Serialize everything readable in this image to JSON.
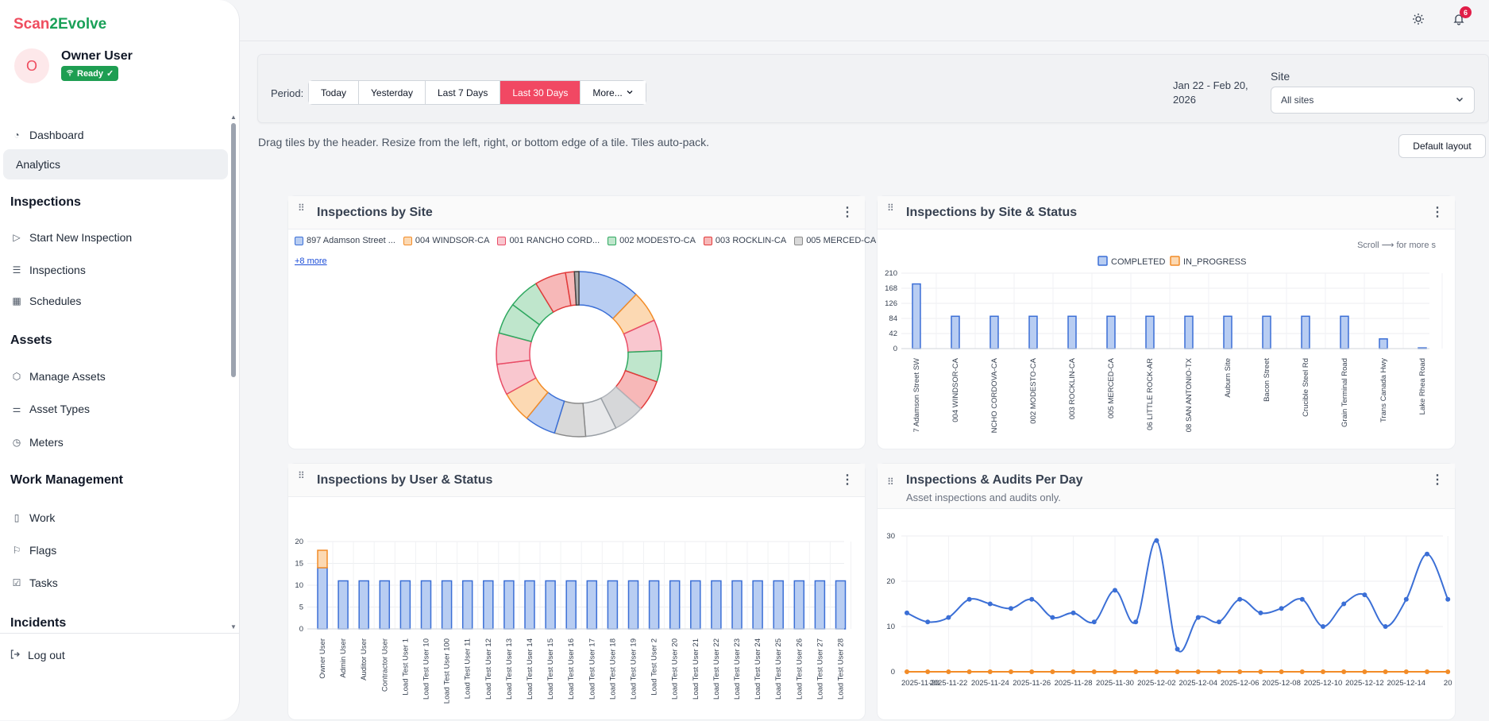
{
  "brand": {
    "part1": "Scan",
    "part2": "2Evolve"
  },
  "user": {
    "initial": "O",
    "name": "Owner User",
    "status": "Ready"
  },
  "sidebar": {
    "items": [
      {
        "label": "Dashboard",
        "icon": "dashboard-icon"
      },
      {
        "label": "Analytics",
        "active": true
      },
      {
        "section": "Inspections"
      },
      {
        "label": "Start New Inspection",
        "icon": "play-icon"
      },
      {
        "label": "Inspections",
        "icon": "list-icon"
      },
      {
        "label": "Schedules",
        "icon": "calendar-icon"
      },
      {
        "section": "Assets"
      },
      {
        "label": "Manage Assets",
        "icon": "box-icon"
      },
      {
        "label": "Asset Types",
        "icon": "sliders-icon"
      },
      {
        "label": "Meters",
        "icon": "gauge-icon"
      },
      {
        "section": "Work Management"
      },
      {
        "label": "Work",
        "icon": "clipboard-icon"
      },
      {
        "label": "Flags",
        "icon": "flag-icon"
      },
      {
        "label": "Tasks",
        "icon": "checkbox-icon"
      },
      {
        "section": "Incidents"
      }
    ],
    "logout": "Log out"
  },
  "topbar": {
    "notifications": "6"
  },
  "filters": {
    "period_label": "Period:",
    "periods": [
      "Today",
      "Yesterday",
      "Last 7 Days",
      "Last 30 Days",
      "More..."
    ],
    "active_period": "Last 30 Days",
    "date_range": "Jan 22 - Feb 20, 2026",
    "site_label": "Site",
    "site_value": "All sites"
  },
  "hint": "Drag tiles by the header. Resize from the left, right, or bottom edge of a tile. Tiles auto-pack.",
  "default_layout": "Default layout",
  "tiles": {
    "by_site": {
      "title": "Inspections by Site",
      "more": "+8 more"
    },
    "by_site_status": {
      "title": "Inspections by Site & Status",
      "scroll_hint": "Scroll ⟶ for more s"
    },
    "by_user_status": {
      "title": "Inspections by User & Status"
    },
    "per_day": {
      "title": "Inspections & Audits Per Day",
      "subtitle": "Asset inspections and audits only."
    }
  },
  "colors": {
    "accent": "#f14863",
    "completed": "#3b6fd6",
    "in_progress": "#f28c28",
    "brand_red": "#ef4d5f",
    "brand_green": "#1aa158"
  },
  "chart_data": [
    {
      "type": "pie",
      "title": "Inspections by Site",
      "legend": [
        "897 Adamson Street ...",
        "004 WINDSOR-CA",
        "001 RANCHO CORD...",
        "002 MODESTO-CA",
        "003 ROCKLIN-CA",
        "005 MERCED-CA"
      ],
      "slice_colors": [
        "#3b6fd6",
        "#f28c28",
        "#e94d67",
        "#2fa860",
        "#e23b3b",
        "#8a8a8a",
        "#9aa0a6",
        "#b0b4ba",
        "#e23b3b",
        "#2fa860",
        "#e94d67",
        "#f28c28",
        "#3b6fd6",
        "#e94d67",
        "#2fa860",
        "#e23b3b",
        "#444444"
      ],
      "values": [
        14,
        7,
        7,
        7,
        7,
        7,
        7,
        7,
        7,
        7,
        7,
        7,
        7,
        7,
        7,
        2,
        1
      ]
    },
    {
      "type": "bar",
      "title": "Inspections by Site & Status",
      "categories": [
        "7 Adamson Street SW",
        "004 WINDSOR-CA",
        "NCHO CORDOVA-CA",
        "002 MODESTO-CA",
        "003 ROCKLIN-CA",
        "005 MERCED-CA",
        "06 LITTLE ROCK-AR",
        "08 SAN ANTONIO-TX",
        "Auburn Site",
        "Bacon Street",
        "Crucible Steel Rd",
        "Grain Terminal Road",
        "Trans Canada Hwy",
        "Lake Rhea Road"
      ],
      "series": [
        {
          "name": "COMPLETED",
          "values": [
            180,
            90,
            90,
            90,
            90,
            90,
            90,
            90,
            90,
            90,
            90,
            90,
            27,
            2
          ]
        },
        {
          "name": "IN_PROGRESS",
          "values": [
            0,
            0,
            0,
            0,
            0,
            0,
            0,
            0,
            0,
            0,
            0,
            0,
            0,
            0
          ]
        }
      ],
      "ylim": [
        0,
        210
      ],
      "yticks": [
        0,
        42,
        84,
        126,
        168,
        210
      ]
    },
    {
      "type": "bar",
      "title": "Inspections by User & Status",
      "categories": [
        "Owner User",
        "Admin User",
        "Auditor User",
        "Contractor User",
        "Load Test User 1",
        "Load Test User 10",
        "Load Test User 100",
        "Load Test User 11",
        "Load Test User 12",
        "Load Test User 13",
        "Load Test User 14",
        "Load Test User 15",
        "Load Test User 16",
        "Load Test User 17",
        "Load Test User 18",
        "Load Test User 19",
        "Load Test User 2",
        "Load Test User 20",
        "Load Test User 21",
        "Load Test User 22",
        "Load Test User 23",
        "Load Test User 24",
        "Load Test User 25",
        "Load Test User 26",
        "Load Test User 27",
        "Load Test User 28"
      ],
      "series": [
        {
          "name": "COMPLETED",
          "values": [
            14,
            11,
            11,
            11,
            11,
            11,
            11,
            11,
            11,
            11,
            11,
            11,
            11,
            11,
            11,
            11,
            11,
            11,
            11,
            11,
            11,
            11,
            11,
            11,
            11,
            11
          ]
        },
        {
          "name": "IN_PROGRESS",
          "values": [
            4,
            0,
            0,
            0,
            0,
            0,
            0,
            0,
            0,
            0,
            0,
            0,
            0,
            0,
            0,
            0,
            0,
            0,
            0,
            0,
            0,
            0,
            0,
            0,
            0,
            0
          ]
        }
      ],
      "ylim": [
        0,
        20
      ],
      "yticks": [
        0,
        5,
        10,
        15,
        20
      ]
    },
    {
      "type": "line",
      "title": "Inspections & Audits Per Day",
      "x": [
        "2025-11-20",
        "2025-11-21",
        "2025-11-22",
        "2025-11-23",
        "2025-11-24",
        "2025-11-25",
        "2025-11-26",
        "2025-11-27",
        "2025-11-28",
        "2025-11-29",
        "2025-11-30",
        "2025-12-01",
        "2025-12-02",
        "2025-12-03",
        "2025-12-04",
        "2025-12-05",
        "2025-12-06",
        "2025-12-07",
        "2025-12-08",
        "2025-12-09",
        "2025-12-10",
        "2025-12-11",
        "2025-12-12",
        "2025-12-13",
        "2025-12-14",
        "2025-12-15",
        "2025-12-16"
      ],
      "xticks": [
        "2025-11-20",
        "2025-11-22",
        "2025-11-24",
        "2025-11-26",
        "2025-11-28",
        "2025-11-30",
        "2025-12-02",
        "2025-12-04",
        "2025-12-06",
        "2025-12-08",
        "2025-12-10",
        "2025-12-12",
        "2025-12-14",
        "20"
      ],
      "series": [
        {
          "values": [
            13,
            11,
            12,
            16,
            15,
            14,
            16,
            12,
            13,
            11,
            18,
            11,
            29,
            5,
            12,
            11,
            16,
            13,
            14,
            16,
            10,
            15,
            17,
            10,
            16,
            26,
            16
          ]
        },
        {
          "values": [
            0,
            0,
            0,
            0,
            0,
            0,
            0,
            0,
            0,
            0,
            0,
            0,
            0,
            0,
            0,
            0,
            0,
            0,
            0,
            0,
            0,
            0,
            0,
            0,
            0,
            0,
            0
          ]
        }
      ],
      "ylim": [
        0,
        30
      ],
      "yticks": [
        0,
        10,
        20,
        30
      ]
    }
  ]
}
